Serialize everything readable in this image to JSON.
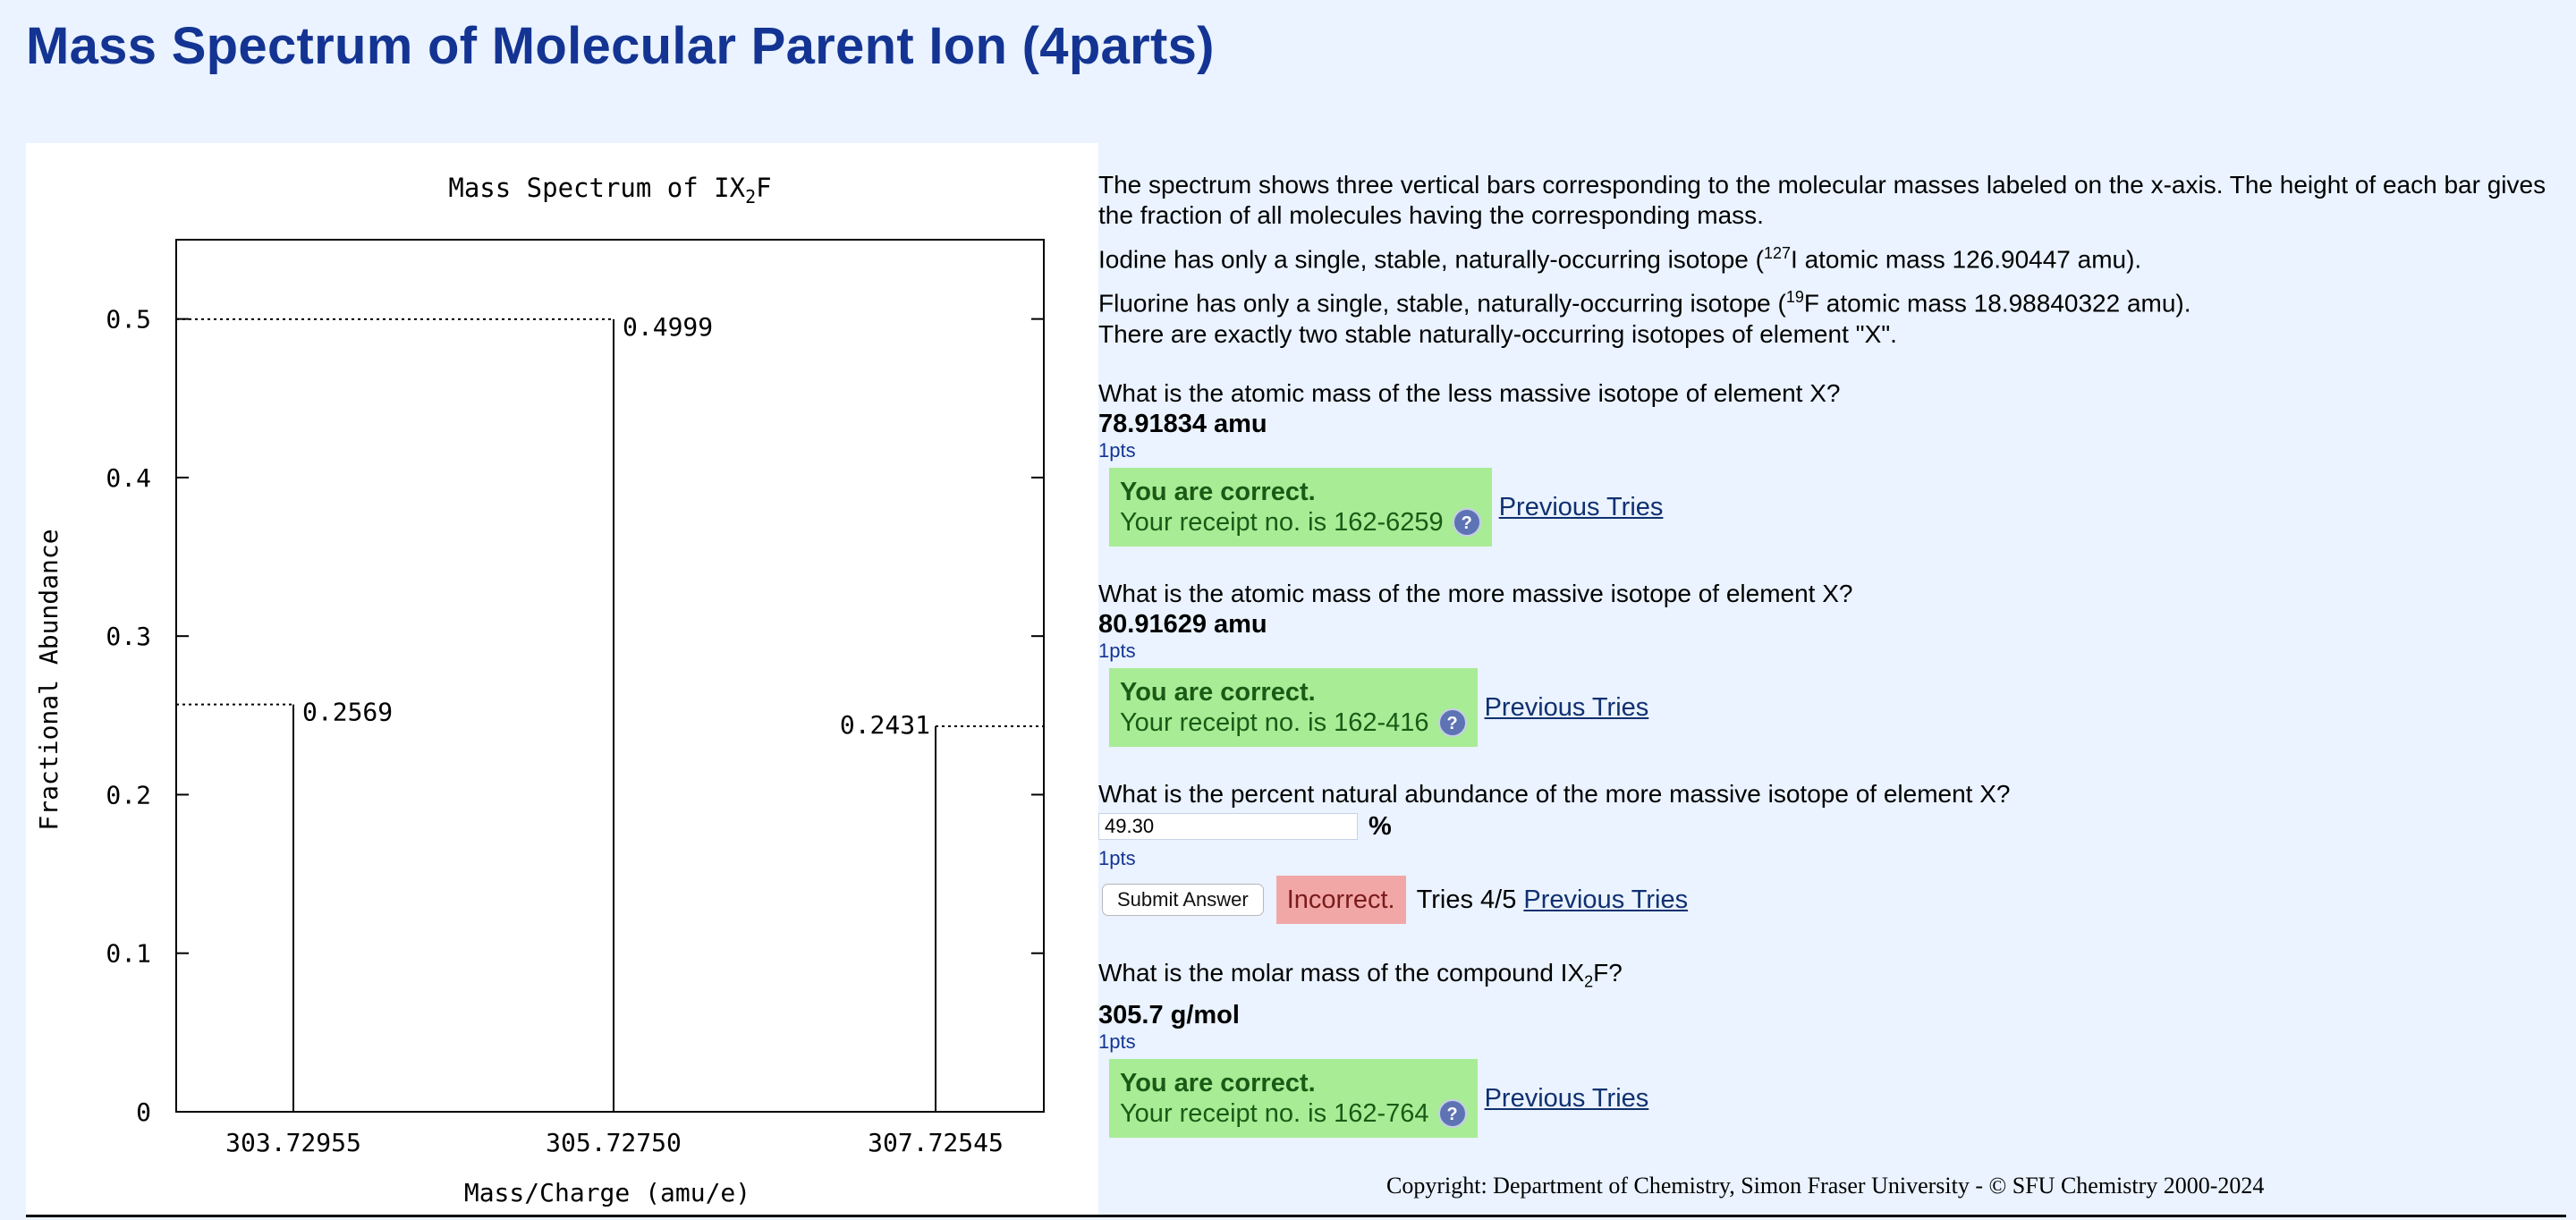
{
  "page": {
    "title": "Mass Spectrum of Molecular Parent Ion (4parts)"
  },
  "description": {
    "line1": "The spectrum shows three vertical bars corresponding to the molecular masses labeled on the x-axis. The height of each bar gives the fraction of all molecules having the corresponding mass.",
    "line2_pre": "Iodine has only a single, stable, naturally-occurring isotope (",
    "line2_sup": "127",
    "line2_post": "I atomic mass 126.90447 amu).",
    "line3_pre": "Fluorine has only a single, stable, naturally-occurring isotope (",
    "line3_sup": "19",
    "line3_post": "F atomic mass 18.98840322 amu).",
    "line4": "There are exactly two stable naturally-occurring isotopes of element \"X\"."
  },
  "questions": [
    {
      "prompt": "What is the atomic mass of the less massive isotope of element X?",
      "answer": "78.91834 amu",
      "pts": "1pts",
      "status_title": "You are correct.",
      "receipt": "Your receipt no. is 162-6259",
      "prev_tries": "Previous Tries"
    },
    {
      "prompt": "What is the atomic mass of the more massive isotope of element X?",
      "answer": "80.91629 amu",
      "pts": "1pts",
      "status_title": "You are correct.",
      "receipt": "Your receipt no. is 162-416",
      "prev_tries": "Previous Tries"
    },
    {
      "prompt": "What is the percent natural abundance of the more massive isotope of element X?",
      "input_value": "49.30",
      "unit": "%",
      "pts": "1pts",
      "submit_label": "Submit Answer",
      "status": "Incorrect.",
      "tries": "Tries 4/5",
      "prev_tries": "Previous Tries"
    },
    {
      "prompt_pre": "What is the molar mass of the compound IX",
      "prompt_sub": "2",
      "prompt_post": "F?",
      "answer": "305.7 g/mol",
      "pts": "1pts",
      "status_title": "You are correct.",
      "receipt": "Your receipt no. is 162-764",
      "prev_tries": "Previous Tries"
    }
  ],
  "copyright": "Copyright: Department of Chemistry, Simon Fraser University - © SFU Chemistry 2000-2024",
  "icons": {
    "help": "help-icon"
  },
  "colors": {
    "title": "#143493",
    "correct_bg": "#a8ec95",
    "incorrect_bg": "#f2a7a7",
    "page_bg": "#eaf3ff"
  },
  "chart_data": {
    "type": "bar",
    "title_pre": "Mass Spectrum of IX",
    "title_sub": "2",
    "title_post": "F",
    "xlabel": "Mass/Charge (amu/e)",
    "ylabel": "Fractional Abundance",
    "categories": [
      "303.72955",
      "305.72750",
      "307.72545"
    ],
    "values": [
      0.2569,
      0.4999,
      0.2431
    ],
    "value_labels": [
      "0.2569",
      "0.4999",
      "0.2431"
    ],
    "yticks": [
      "0",
      "0.1",
      "0.2",
      "0.3",
      "0.4",
      "0.5"
    ],
    "ylim": [
      0,
      0.55
    ],
    "grid": false
  }
}
